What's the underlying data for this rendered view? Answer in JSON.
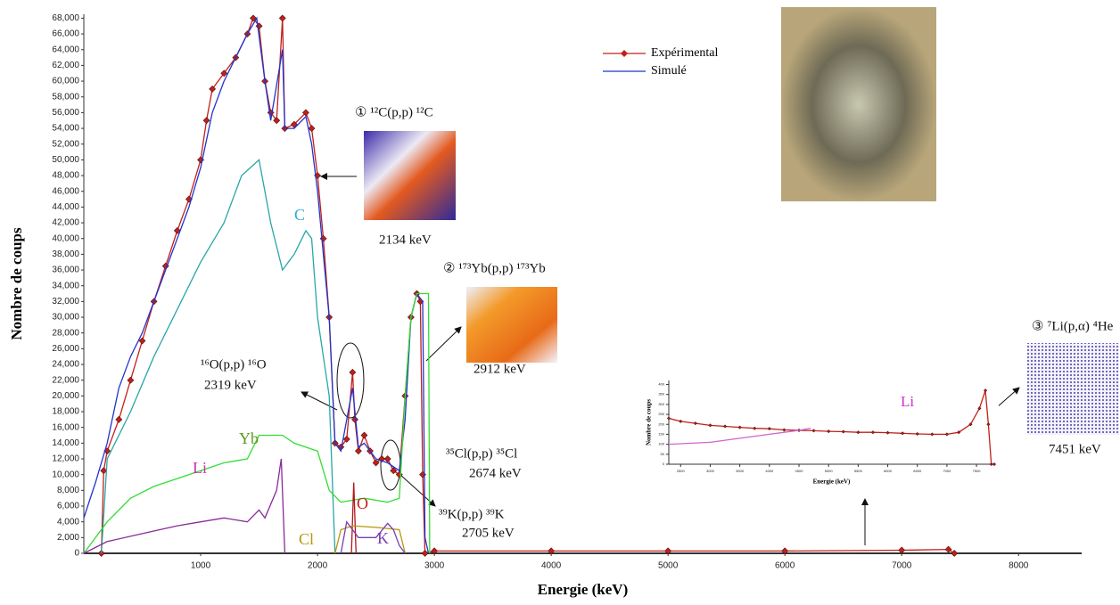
{
  "chart_data": [
    {
      "type": "line",
      "xlabel": "Energie (keV)",
      "ylabel": "Nombre de coups",
      "xlim": [
        0,
        8540
      ],
      "ylim": [
        0,
        68500
      ],
      "xticks": [
        1000,
        2000,
        3000,
        4000,
        5000,
        6000,
        7000,
        8000
      ],
      "yticks": [
        0,
        {
          "value": 2000,
          "label": "2,000"
        },
        {
          "value": 4000,
          "label": "4,000"
        },
        {
          "value": 6000,
          "label": "6,000"
        },
        {
          "value": 8000,
          "label": "8,000"
        },
        {
          "value": 10000,
          "label": "10,000"
        },
        {
          "value": 12000,
          "label": "12,000"
        },
        {
          "value": 14000,
          "label": "14,000"
        },
        {
          "value": 16000,
          "label": "16,000"
        },
        {
          "value": 18000,
          "label": "18,000"
        },
        {
          "value": 20000,
          "label": "20,000"
        },
        {
          "value": 22000,
          "label": "22,000"
        },
        {
          "value": 24000,
          "label": "24,000"
        },
        {
          "value": 26000,
          "label": "26,000"
        },
        {
          "value": 28000,
          "label": "28,000"
        },
        {
          "value": 30000,
          "label": "30,000"
        },
        {
          "value": 32000,
          "label": "32,000"
        },
        {
          "value": 34000,
          "label": "34,000"
        },
        {
          "value": 36000,
          "label": "36,000"
        },
        {
          "value": 38000,
          "label": "38,000"
        },
        {
          "value": 40000,
          "label": "40,000"
        },
        {
          "value": 42000,
          "label": "42,000"
        },
        {
          "value": 44000,
          "label": "44,000"
        },
        {
          "value": 46000,
          "label": "46,000"
        },
        {
          "value": 48000,
          "label": "48,000"
        },
        {
          "value": 50000,
          "label": "50,000"
        },
        {
          "value": 52000,
          "label": "52,000"
        },
        {
          "value": 54000,
          "label": "54,000"
        },
        {
          "value": 56000,
          "label": "56,000"
        },
        {
          "value": 58000,
          "label": "58,000"
        },
        {
          "value": 60000,
          "label": "60,000"
        },
        {
          "value": 62000,
          "label": "62,000"
        },
        {
          "value": 64000,
          "label": "64,000"
        },
        {
          "value": 66000,
          "label": "66,000"
        },
        {
          "value": 68000,
          "label": "68,000"
        }
      ],
      "series": [
        {
          "name": "Expérimental",
          "color": "#c0201a",
          "legend": true,
          "markers": "diamond",
          "x": [
            150,
            170,
            200,
            300,
            400,
            500,
            600,
            700,
            800,
            900,
            1000,
            1050,
            1100,
            1200,
            1300,
            1400,
            1450,
            1500,
            1550,
            1600,
            1650,
            1700,
            1720,
            1800,
            1900,
            1950,
            2000,
            2050,
            2100,
            2150,
            2200,
            2250,
            2300,
            2320,
            2350,
            2400,
            2450,
            2500,
            2550,
            2600,
            2650,
            2700,
            2750,
            2800,
            2850,
            2880,
            2900,
            2920,
            3000,
            4000,
            5000,
            6000,
            7000,
            7400,
            7450
          ],
          "values": [
            0,
            10500,
            13000,
            17000,
            22000,
            27000,
            32000,
            36500,
            41000,
            45000,
            50000,
            55000,
            59000,
            61000,
            63000,
            66000,
            68000,
            67000,
            60000,
            56000,
            55000,
            68000,
            54000,
            54500,
            56000,
            54000,
            48000,
            40000,
            30000,
            14000,
            13500,
            14500,
            23000,
            17000,
            13000,
            15000,
            13000,
            11500,
            12000,
            12000,
            10500,
            10000,
            20000,
            30000,
            33000,
            32000,
            10000,
            0,
            300,
            300,
            300,
            300,
            400,
            500,
            0
          ]
        },
        {
          "name": "Simulé",
          "color": "#2233cc",
          "legend": true,
          "x": [
            0,
            100,
            200,
            300,
            400,
            500,
            600,
            700,
            800,
            900,
            1000,
            1100,
            1200,
            1300,
            1400,
            1480,
            1550,
            1600,
            1700,
            1720,
            1800,
            1900,
            1950,
            2000,
            2050,
            2100,
            2150,
            2200,
            2300,
            2350,
            2400,
            2500,
            2600,
            2700,
            2750,
            2800,
            2850,
            2900,
            2920,
            2950
          ],
          "values": [
            4500,
            9000,
            14000,
            21000,
            25000,
            28000,
            32000,
            36000,
            40000,
            44000,
            49000,
            56000,
            60000,
            63000,
            66000,
            68000,
            60000,
            55000,
            64000,
            54000,
            54000,
            55500,
            52000,
            46000,
            38000,
            30000,
            14000,
            13000,
            21000,
            13500,
            14000,
            12000,
            11500,
            10500,
            17000,
            30000,
            33000,
            32000,
            2000,
            0
          ]
        },
        {
          "name": "C",
          "color": "#2aa6a6",
          "legend": false,
          "x": [
            150,
            200,
            400,
            600,
            800,
            1000,
            1200,
            1350,
            1500,
            1600,
            1700,
            1800,
            1900,
            1950,
            2000,
            2050,
            2100,
            2150
          ],
          "values": [
            0,
            12000,
            18000,
            25000,
            31000,
            37000,
            42000,
            48000,
            50000,
            42000,
            36000,
            38000,
            41000,
            40000,
            30000,
            25000,
            20000,
            0
          ]
        },
        {
          "name": "Yb",
          "color": "#33dd33",
          "legend": false,
          "x": [
            0,
            200,
            400,
            600,
            800,
            1000,
            1200,
            1400,
            1500,
            1700,
            1800,
            2000,
            2100,
            2200,
            2400,
            2600,
            2700,
            2750,
            2800,
            2850,
            2950,
            2960
          ],
          "values": [
            0,
            4000,
            7000,
            8500,
            9500,
            10500,
            11500,
            12000,
            15000,
            15000,
            14000,
            13000,
            8000,
            6500,
            7000,
            6500,
            7000,
            20000,
            30000,
            33000,
            33000,
            0
          ]
        },
        {
          "name": "Li",
          "color": "#8a2a9a",
          "legend": false,
          "x": [
            0,
            200,
            500,
            800,
            1000,
            1200,
            1400,
            1500,
            1550,
            1650,
            1690,
            1720
          ],
          "values": [
            0,
            1500,
            2500,
            3500,
            4000,
            4500,
            4000,
            5500,
            4500,
            8000,
            12000,
            0
          ]
        },
        {
          "name": "O",
          "color": "#b01818",
          "legend": false,
          "x": [
            2290,
            2310,
            2330
          ],
          "values": [
            0,
            9000,
            0
          ]
        },
        {
          "name": "Cl",
          "color": "#b8960b",
          "legend": false,
          "x": [
            2150,
            2200,
            2300,
            2500,
            2700,
            2750
          ],
          "values": [
            0,
            3000,
            3500,
            3300,
            3000,
            0
          ]
        },
        {
          "name": "K",
          "color": "#7a3fb5",
          "legend": false,
          "x": [
            2200,
            2250,
            2350,
            2500,
            2600,
            2650,
            2700,
            2750
          ],
          "values": [
            0,
            4000,
            2000,
            2000,
            3800,
            3000,
            1000,
            0
          ]
        }
      ],
      "annotations": [
        "① ¹²C(p,p) ¹²C",
        "2134 keV",
        "② ¹⁷³Yb(p,p) ¹⁷³Yb",
        "2912 keV",
        "¹⁶O(p,p) ¹⁶O",
        "2319 keV",
        "³⁵Cl(p,p) ³⁵Cl",
        "2674 keV",
        "³⁹K(p,p) ³⁹K",
        "2705 keV",
        "③ ⁷Li(p,α) ⁴He",
        "7451 keV"
      ]
    },
    {
      "type": "line",
      "xlabel": "Energie (keV)",
      "ylabel": "Nombre de coups",
      "annotation": "Li",
      "xlim": [
        2300,
        7800
      ],
      "ylim": [
        0,
        420
      ],
      "xticks": [
        2500,
        3000,
        3500,
        4000,
        4500,
        5000,
        5500,
        6000,
        6500,
        7000,
        7500
      ],
      "yticks": [
        0,
        50,
        100,
        150,
        200,
        250,
        300,
        350,
        400
      ],
      "series": [
        {
          "name": "Expérimental",
          "color": "#c0201a",
          "markers": "diamond",
          "x": [
            2300,
            2500,
            2750,
            3000,
            3250,
            3500,
            3750,
            4000,
            4250,
            4500,
            4750,
            5000,
            5250,
            5500,
            5750,
            6000,
            6250,
            6500,
            6750,
            7000,
            7200,
            7400,
            7550,
            7650,
            7700,
            7750,
            7800
          ],
          "values": [
            230,
            215,
            205,
            195,
            190,
            185,
            180,
            178,
            172,
            170,
            168,
            165,
            163,
            160,
            160,
            158,
            155,
            152,
            150,
            150,
            160,
            200,
            280,
            370,
            200,
            0,
            0
          ]
        },
        {
          "name": "Li",
          "color": "#cc66cc",
          "x": [
            2300,
            3000,
            3500,
            4000,
            4500,
            4700
          ],
          "values": [
            100,
            110,
            130,
            150,
            170,
            180
          ]
        }
      ]
    }
  ]
}
